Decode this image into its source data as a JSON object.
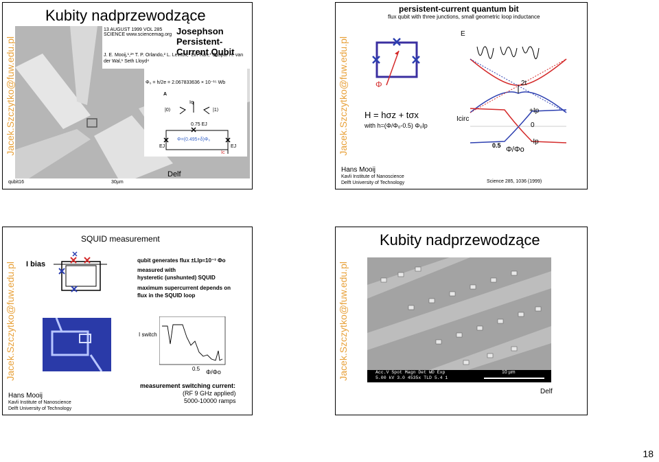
{
  "watermark": "Jacek.Szczytko@fuw.edu.pl",
  "page_number": "18",
  "slide1": {
    "title": "Kubity nadprzewodzące",
    "paper_date": "13 AUGUST 1999 VOL 285 SCIENCE www.sciencemag.org",
    "paper_title": "Josephson Persistent-Current Qubit",
    "authors": "J. E. Mooij,¹,²* T. P. Orlando,² L. Levitov,³ Lin Tian,³ Caspar H. van der Wal,¹ Seth Lloyd⁴",
    "flux_quantum": "Φ₀ = h/2e = 2.067833636 × 10⁻¹⁵ Wb",
    "label_A": "A",
    "label_Iq": "Iq",
    "state_0": "|0⟩",
    "state_1": "|1⟩",
    "junction_075": "0.75 EJ",
    "ej_left": "EJ",
    "ej_right": "EJ",
    "phi_expr": "Φ=(0.495+δ)Φ₀",
    "ic": "Ic",
    "scale_left": "qubit16",
    "scale_right": "30µm",
    "footer": "Delf",
    "colors": {
      "watermark": "#e8a13a",
      "phi": "#3a66c8"
    }
  },
  "slide2": {
    "title": "persistent-current quantum bit",
    "subtitle": "flux qubit with three junctions, small geometric loop inductance",
    "phi_label": "Φ",
    "hamiltonian": "H = hσz + tσx",
    "h_def": "with h=(Φ/Φ₀-0.5) Φ₀Ip",
    "e_label": "E",
    "two_t": "2t",
    "icirc": "Icirc",
    "plus_ip": "+Ip",
    "zero": "0",
    "minus_ip": "-Ip",
    "x_tick": "0.5",
    "x_label": "Φ/Φo",
    "author": "Hans Mooij",
    "inst1": "Kavli Institute of Nanoscience",
    "inst2": "Delft University of Technology",
    "reference": "Science 285, 1036 (1999)",
    "colors": {
      "red": "#d42a2a",
      "blue": "#2c3fb0",
      "loop": "#3a2fa0"
    }
  },
  "slide3": {
    "title": "SQUID measurement",
    "ibias": "I bias",
    "desc1": "qubit generates flux ±LIp≈10⁻³ Φo",
    "desc2": "measured with",
    "desc3": "hysteretic (unshunted) SQUID",
    "desc4": "maximum supercurrent depends on",
    "desc5": "flux in the SQUID loop",
    "iswitch": "I switch",
    "x_tick": "0.5",
    "x_label": "Φ/Φo",
    "meas1": "measurement switching current:",
    "meas2": "(RF 9 GHz applied)",
    "meas3": "5000-10000 ramps",
    "author": "Hans Mooij",
    "inst1": "Kavli Institute of Nanoscience",
    "inst2": "Delft University of Technology"
  },
  "slide4": {
    "title": "Kubity nadprzewodzące",
    "sem_labels": "Acc.V  Spot Magn   Det  WD  Exp",
    "sem_values": "5.00 kV 3.0  4535x   TLD  5.4   1",
    "sem_scale": "10 µm",
    "footer": "Delf"
  }
}
